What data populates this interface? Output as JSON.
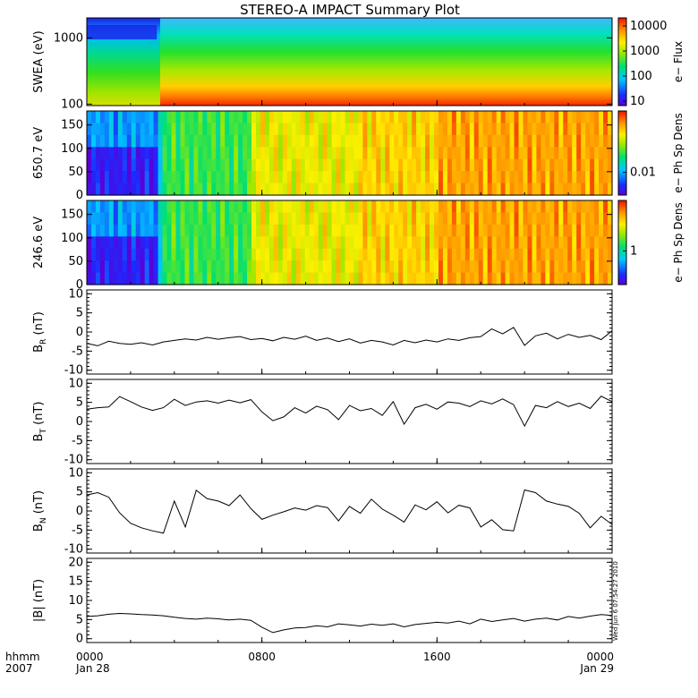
{
  "chart_data": {
    "type": "line",
    "title": "STEREO-A IMPACT Summary Plot",
    "x_axis": {
      "corner_label": [
        "hhmm",
        "2007"
      ],
      "ticks": [
        {
          "hour": 0,
          "line1": "0000",
          "line2": "Jan 28"
        },
        {
          "hour": 8,
          "line1": "0800",
          "line2": ""
        },
        {
          "hour": 16,
          "line1": "1600",
          "line2": ""
        },
        {
          "hour": 24,
          "line1": "0000",
          "line2": "Jan 29"
        }
      ],
      "range_hours": [
        0,
        24
      ]
    },
    "timestamp": "Wed Jun 6 07:54:27 2010",
    "spectrograms": [
      {
        "name": "swea",
        "ylabel": "SWEA (eV)",
        "yscale": "log",
        "ylim": [
          95,
          2000
        ],
        "yticks": [
          "100",
          "1000"
        ],
        "colorbar_label": "e− Flux",
        "colorbar_ticks": [
          "10",
          "100",
          "1000",
          "10000"
        ]
      },
      {
        "name": "pad650",
        "ylabel": "650.7 eV",
        "yscale": "linear",
        "ylim": [
          0,
          180
        ],
        "yticks": [
          "0",
          "50",
          "100",
          "150"
        ],
        "colorbar_label": "e− Ph Sp Dens",
        "colorbar_ticks": [
          "0.01"
        ]
      },
      {
        "name": "pad246",
        "ylabel": "246.6 eV",
        "yscale": "linear",
        "ylim": [
          0,
          180
        ],
        "yticks": [
          "0",
          "50",
          "100",
          "150"
        ],
        "colorbar_label": "e− Ph Sp Dens",
        "colorbar_ticks": [
          "1"
        ]
      }
    ],
    "series": [
      {
        "name": "BR",
        "ylabel": "B_R (nT)",
        "ylim": [
          -11,
          11
        ],
        "yticks": [
          "10",
          "5",
          "0",
          "-5",
          "-10"
        ],
        "x": [
          0,
          0.5,
          1,
          1.5,
          2,
          2.5,
          3,
          3.5,
          4,
          4.5,
          5,
          5.5,
          6,
          6.5,
          7,
          7.5,
          8,
          8.5,
          9,
          9.5,
          10,
          10.5,
          11,
          11.5,
          12,
          12.5,
          13,
          13.5,
          14,
          14.5,
          15,
          15.5,
          16,
          16.5,
          17,
          17.5,
          18,
          18.5,
          19,
          19.5,
          20,
          20.5,
          21,
          21.5,
          22,
          22.5,
          23,
          23.5,
          24
        ],
        "values": [
          -3,
          -3.6,
          -2.4,
          -3,
          -3.2,
          -2.8,
          -3.4,
          -2.6,
          -2.2,
          -1.8,
          -2.1,
          -1.4,
          -1.9,
          -1.5,
          -1.2,
          -2,
          -1.7,
          -2.3,
          -1.4,
          -1.9,
          -1.1,
          -2.2,
          -1.6,
          -2.5,
          -1.8,
          -2.9,
          -2.2,
          -2.6,
          -3.4,
          -2.2,
          -2.8,
          -2.1,
          -2.6,
          -1.8,
          -2.2,
          -1.5,
          -1.2,
          0.8,
          -0.5,
          1.2,
          -3.5,
          -1,
          -0.3,
          -1.8,
          -0.6,
          -1.4,
          -0.9,
          -2,
          0.3
        ]
      },
      {
        "name": "BT",
        "ylabel": "B_T (nT)",
        "ylim": [
          -11,
          11
        ],
        "yticks": [
          "10",
          "5",
          "0",
          "-5",
          "-10"
        ],
        "x": [
          0,
          0.5,
          1,
          1.5,
          2,
          2.5,
          3,
          3.5,
          4,
          4.5,
          5,
          5.5,
          6,
          6.5,
          7,
          7.5,
          8,
          8.5,
          9,
          9.5,
          10,
          10.5,
          11,
          11.5,
          12,
          12.5,
          13,
          13.5,
          14,
          14.5,
          15,
          15.5,
          16,
          16.5,
          17,
          17.5,
          18,
          18.5,
          19,
          19.5,
          20,
          20.5,
          21,
          21.5,
          22,
          22.5,
          23,
          23.5,
          24
        ],
        "values": [
          3.2,
          3.6,
          3.8,
          6.5,
          5.2,
          3.8,
          2.9,
          3.6,
          5.8,
          4.2,
          5.1,
          5.4,
          4.8,
          5.6,
          4.9,
          5.7,
          2.5,
          0.2,
          1.2,
          3.6,
          2.2,
          4,
          3.1,
          0.5,
          4.2,
          2.8,
          3.4,
          1.6,
          5.2,
          -0.7,
          3.6,
          4.5,
          3.2,
          5.1,
          4.8,
          3.9,
          5.4,
          4.6,
          5.9,
          4.4,
          -1.2,
          4.2,
          3.6,
          5.2,
          3.9,
          4.8,
          3.4,
          6.6,
          5.2
        ]
      },
      {
        "name": "BN",
        "ylabel": "B_N (nT)",
        "ylim": [
          -11,
          11
        ],
        "yticks": [
          "10",
          "5",
          "0",
          "-5",
          "-10"
        ],
        "x": [
          0,
          0.5,
          1,
          1.5,
          2,
          2.5,
          3,
          3.5,
          4,
          4.5,
          5,
          5.5,
          6,
          6.5,
          7,
          7.5,
          8,
          8.5,
          9,
          9.5,
          10,
          10.5,
          11,
          11.5,
          12,
          12.5,
          13,
          13.5,
          14,
          14.5,
          15,
          15.5,
          16,
          16.5,
          17,
          17.5,
          18,
          18.5,
          19,
          19.5,
          20,
          20.5,
          21,
          21.5,
          22,
          22.5,
          23,
          23.5,
          24
        ],
        "values": [
          4.2,
          4.8,
          3.6,
          -0.5,
          -3.2,
          -4.4,
          -5.2,
          -5.8,
          2.6,
          -4.2,
          5.4,
          3.2,
          2.6,
          1.4,
          4.2,
          0.6,
          -2.2,
          -1.1,
          -0.2,
          0.8,
          0.2,
          1.4,
          0.9,
          -2.6,
          1.2,
          -0.6,
          3.1,
          0.5,
          -1.1,
          -2.9,
          1.6,
          0.3,
          2.4,
          -0.5,
          1.5,
          0.8,
          -4.2,
          -2.3,
          -4.9,
          -5.2,
          5.5,
          4.8,
          2.6,
          1.8,
          1.2,
          -0.6,
          -4.4,
          -1.4,
          -3.5
        ]
      },
      {
        "name": "B",
        "ylabel": "|B| (nT)",
        "ylim": [
          -1,
          21
        ],
        "yticks": [
          "20",
          "15",
          "10",
          "5",
          "0"
        ],
        "x": [
          0,
          0.5,
          1,
          1.5,
          2,
          2.5,
          3,
          3.5,
          4,
          4.5,
          5,
          5.5,
          6,
          6.5,
          7,
          7.5,
          8,
          8.5,
          9,
          9.5,
          10,
          10.5,
          11,
          11.5,
          12,
          12.5,
          13,
          13.5,
          14,
          14.5,
          15,
          15.5,
          16,
          16.5,
          17,
          17.5,
          18,
          18.5,
          19,
          19.5,
          20,
          20.5,
          21,
          21.5,
          22,
          22.5,
          23,
          23.5,
          24
        ],
        "values": [
          5.8,
          6,
          6.4,
          6.6,
          6.5,
          6.3,
          6.2,
          6,
          5.6,
          5.3,
          5.1,
          5.4,
          5.2,
          4.9,
          5.1,
          4.8,
          3,
          1.6,
          2.3,
          2.8,
          2.9,
          3.4,
          3.1,
          3.9,
          3.6,
          3.3,
          3.8,
          3.5,
          3.9,
          3.1,
          3.7,
          4,
          4.3,
          4.1,
          4.6,
          3.9,
          5.1,
          4.5,
          4.9,
          5.3,
          4.6,
          5.1,
          5.4,
          4.9,
          5.8,
          5.4,
          5.9,
          6.3,
          6.1
        ]
      }
    ]
  }
}
